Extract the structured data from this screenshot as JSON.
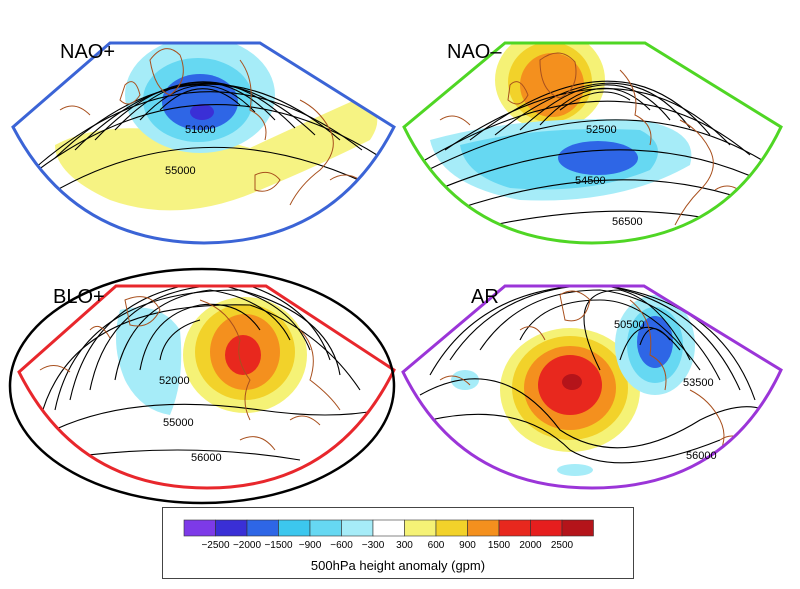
{
  "panels": [
    {
      "title": "NAO+",
      "frame_color": "#3b64d6",
      "contour_labels": [
        "51000",
        "55000"
      ]
    },
    {
      "title": "NAO–",
      "frame_color": "#4fd624",
      "contour_labels": [
        "52500",
        "54500",
        "56500"
      ]
    },
    {
      "title": "BLO+",
      "frame_color": "#e8272c",
      "contour_labels": [
        "52000",
        "55000",
        "56000"
      ]
    },
    {
      "title": "AR",
      "frame_color": "#9b35d8",
      "contour_labels": [
        "50500",
        "53500",
        "56000"
      ]
    }
  ],
  "colorbar": {
    "title": "500hPa height anomaly (gpm)",
    "ticks": [
      "−2500",
      "−2000",
      "−1500",
      "−900",
      "−600",
      "−300",
      "300",
      "600",
      "900",
      "1500",
      "2000",
      "2500"
    ],
    "colors": [
      "#7d3ae8",
      "#3a2fd6",
      "#2e66e6",
      "#3cc7ee",
      "#66d8f2",
      "#a6ecf8",
      "#ffffff",
      "#f5f276",
      "#f2d22a",
      "#f4901e",
      "#e8281e",
      "#e61e1e",
      "#b4141a"
    ]
  },
  "highlight_ellipse_color": "#000000"
}
